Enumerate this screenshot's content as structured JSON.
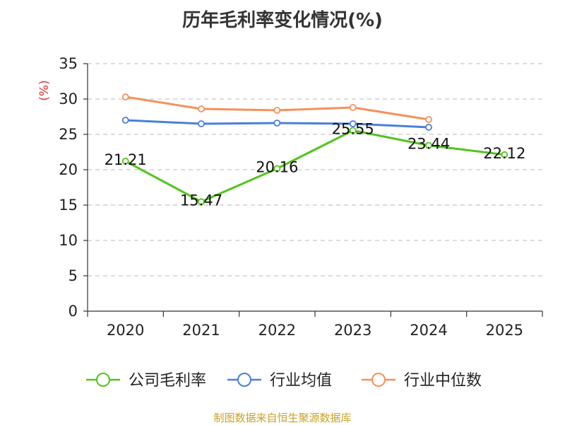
{
  "chart_data": {
    "type": "line",
    "title": "历年毛利率变化情况(%)",
    "ylabel": "(%)",
    "xlabel": "",
    "ylim": [
      0,
      35
    ],
    "yticks": [
      0,
      5,
      10,
      15,
      20,
      25,
      30,
      35
    ],
    "categories": [
      "2020",
      "2021",
      "2022",
      "2023",
      "2024",
      "2025"
    ],
    "grid": true,
    "legend_position": "bottom",
    "series": [
      {
        "name": "公司毛利率",
        "color": "#52c41a",
        "values": [
          21.21,
          15.47,
          20.16,
          25.55,
          23.44,
          22.12
        ],
        "labels": [
          "21.21",
          "15.47",
          "20.16",
          "25.55",
          "23.44",
          "22.12"
        ]
      },
      {
        "name": "行业均值",
        "color": "#4a7fd9",
        "values": [
          27.0,
          26.5,
          26.6,
          26.5,
          26.0,
          null
        ]
      },
      {
        "name": "行业中位数",
        "color": "#f5915a",
        "values": [
          30.3,
          28.6,
          28.4,
          28.8,
          27.1,
          null
        ]
      }
    ]
  },
  "source_text": "制图数据来自恒生聚源数据库"
}
